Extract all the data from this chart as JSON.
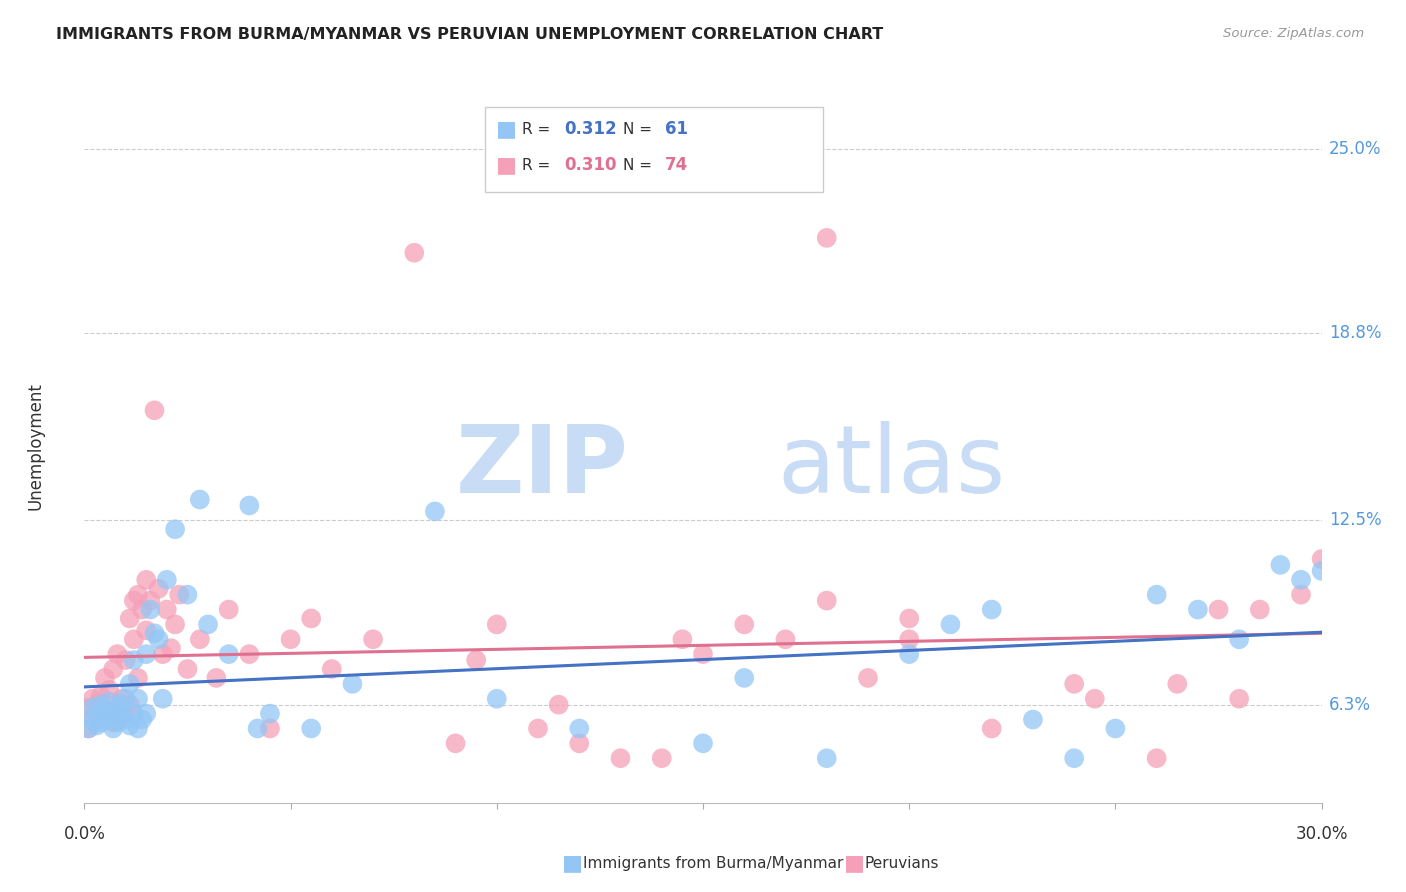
{
  "title": "IMMIGRANTS FROM BURMA/MYANMAR VS PERUVIAN UNEMPLOYMENT CORRELATION CHART",
  "source": "Source: ZipAtlas.com",
  "ylabel": "Unemployment",
  "ytick_labels": [
    "6.3%",
    "12.5%",
    "18.8%",
    "25.0%"
  ],
  "ytick_values": [
    6.3,
    12.5,
    18.8,
    25.0
  ],
  "xlim": [
    0.0,
    30.0
  ],
  "ylim": [
    3.0,
    27.0
  ],
  "legend_blue_R": "0.312",
  "legend_blue_N": "61",
  "legend_pink_R": "0.310",
  "legend_pink_N": "74",
  "legend_label_blue": "Immigrants from Burma/Myanmar",
  "legend_label_pink": "Peruvians",
  "blue_color": "#93c6f5",
  "pink_color": "#f5a0b8",
  "trend_blue_color": "#4472c4",
  "trend_pink_color": "#e07090",
  "trend_blue_dashed_color": "#aaaaaa",
  "watermark_zip_color": "#c8ddf5",
  "watermark_atlas_color": "#c8ddf5",
  "blue_scatter_x": [
    0.1,
    0.2,
    0.2,
    0.3,
    0.3,
    0.4,
    0.4,
    0.5,
    0.5,
    0.6,
    0.6,
    0.7,
    0.7,
    0.8,
    0.8,
    0.9,
    0.9,
    1.0,
    1.0,
    1.1,
    1.1,
    1.2,
    1.2,
    1.3,
    1.3,
    1.4,
    1.5,
    1.5,
    1.6,
    1.7,
    1.8,
    1.9,
    2.0,
    2.2,
    2.5,
    2.8,
    3.0,
    3.5,
    4.0,
    4.2,
    4.5,
    5.5,
    6.5,
    8.5,
    10.0,
    12.0,
    15.0,
    16.0,
    18.0,
    20.0,
    21.0,
    22.0,
    23.0,
    24.0,
    25.0,
    26.0,
    27.0,
    28.0,
    29.0,
    29.5,
    30.0
  ],
  "blue_scatter_y": [
    5.5,
    5.8,
    6.2,
    5.6,
    6.0,
    5.7,
    6.3,
    5.9,
    6.1,
    5.8,
    6.4,
    5.5,
    6.0,
    5.7,
    6.2,
    5.9,
    6.3,
    5.8,
    6.5,
    5.6,
    7.0,
    6.0,
    7.8,
    5.5,
    6.5,
    5.8,
    8.0,
    6.0,
    9.5,
    8.7,
    8.5,
    6.5,
    10.5,
    12.2,
    10.0,
    13.2,
    9.0,
    8.0,
    13.0,
    5.5,
    6.0,
    5.5,
    7.0,
    12.8,
    6.5,
    5.5,
    5.0,
    7.2,
    4.5,
    8.0,
    9.0,
    9.5,
    5.8,
    4.5,
    5.5,
    10.0,
    9.5,
    8.5,
    11.0,
    10.5,
    10.8
  ],
  "pink_scatter_x": [
    0.1,
    0.1,
    0.2,
    0.2,
    0.3,
    0.3,
    0.4,
    0.4,
    0.5,
    0.5,
    0.6,
    0.6,
    0.7,
    0.7,
    0.8,
    0.8,
    0.9,
    1.0,
    1.0,
    1.1,
    1.1,
    1.2,
    1.2,
    1.3,
    1.3,
    1.4,
    1.5,
    1.5,
    1.6,
    1.7,
    1.8,
    1.9,
    2.0,
    2.1,
    2.2,
    2.3,
    2.5,
    2.8,
    3.2,
    3.5,
    4.0,
    4.5,
    5.0,
    6.0,
    7.0,
    8.0,
    9.0,
    10.0,
    11.0,
    12.0,
    13.0,
    14.0,
    15.0,
    16.0,
    17.0,
    18.0,
    19.0,
    20.0,
    22.0,
    24.0,
    26.0,
    27.5,
    28.5,
    29.5,
    30.0,
    5.5,
    9.5,
    11.5,
    14.5,
    18.0,
    20.0,
    24.5,
    26.5,
    28.0
  ],
  "pink_scatter_y": [
    5.5,
    6.2,
    5.9,
    6.5,
    6.0,
    6.3,
    5.8,
    6.6,
    6.1,
    7.2,
    6.0,
    6.8,
    5.7,
    7.5,
    6.2,
    8.0,
    6.5,
    6.0,
    7.8,
    6.3,
    9.2,
    8.5,
    9.8,
    7.2,
    10.0,
    9.5,
    8.8,
    10.5,
    9.8,
    16.2,
    10.2,
    8.0,
    9.5,
    8.2,
    9.0,
    10.0,
    7.5,
    8.5,
    7.2,
    9.5,
    8.0,
    5.5,
    8.5,
    7.5,
    8.5,
    21.5,
    5.0,
    9.0,
    5.5,
    5.0,
    4.5,
    4.5,
    8.0,
    9.0,
    8.5,
    22.0,
    7.2,
    8.5,
    5.5,
    7.0,
    4.5,
    9.5,
    9.5,
    10.0,
    11.2,
    9.2,
    7.8,
    6.3,
    8.5,
    9.8,
    9.2,
    6.5,
    7.0,
    6.5
  ],
  "xtick_positions": [
    0,
    5,
    10,
    15,
    20,
    25,
    30
  ]
}
